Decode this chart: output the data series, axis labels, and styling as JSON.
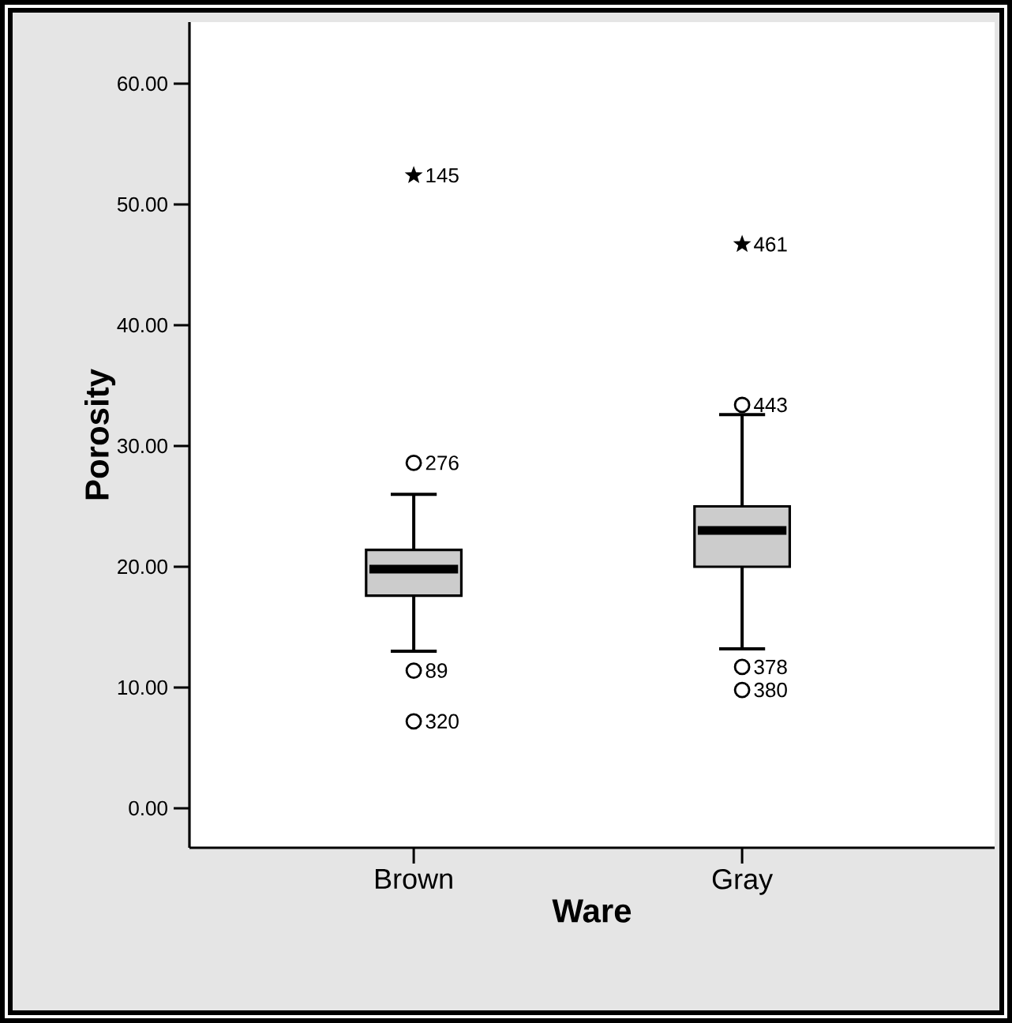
{
  "chart_data": {
    "type": "box",
    "xlabel": "Ware",
    "ylabel": "Porosity",
    "categories": [
      "Brown",
      "Gray"
    ],
    "ylim": [
      -3.27,
      65.1
    ],
    "yticks": [
      {
        "value": 0,
        "label": "0.00"
      },
      {
        "value": 10,
        "label": "10.00"
      },
      {
        "value": 20,
        "label": "20.00"
      },
      {
        "value": 30,
        "label": "30.00"
      },
      {
        "value": 40,
        "label": "40.00"
      },
      {
        "value": 50,
        "label": "50.00"
      },
      {
        "value": 60,
        "label": "60.00"
      }
    ],
    "grid": false,
    "series": [
      {
        "type": "box",
        "color": "#cccccc",
        "boxes": [
          {
            "low": 13.0,
            "q1": 17.6,
            "median": 19.8,
            "q3": 21.4,
            "high": 26.0
          },
          {
            "low": 13.2,
            "q1": 20.0,
            "median": 23.0,
            "q3": 25.0,
            "high": 32.6
          }
        ]
      },
      {
        "type": "scatter",
        "color": "#000000",
        "marker": "circle",
        "x": [
          "Brown",
          "Brown",
          "Brown",
          "Gray",
          "Gray",
          "Gray"
        ],
        "values": [
          28.6,
          11.4,
          7.2,
          33.4,
          11.7,
          9.8
        ]
      },
      {
        "type": "scatter",
        "color": "#000000",
        "marker": "star",
        "x": [
          "Brown",
          "Gray"
        ],
        "values": [
          52.4,
          46.7
        ]
      }
    ],
    "annotations": [
      {
        "text": "145",
        "x": "Brown",
        "y": 52.4
      },
      {
        "text": "276",
        "x": "Brown",
        "y": 28.6
      },
      {
        "text": "89",
        "x": "Brown",
        "y": 11.4
      },
      {
        "text": "320",
        "x": "Brown",
        "y": 7.2
      },
      {
        "text": "461",
        "x": "Gray",
        "y": 46.7
      },
      {
        "text": "443",
        "x": "Gray",
        "y": 33.4
      },
      {
        "text": "378",
        "x": "Gray",
        "y": 11.7
      },
      {
        "text": "380",
        "x": "Gray",
        "y": 9.8
      }
    ]
  }
}
